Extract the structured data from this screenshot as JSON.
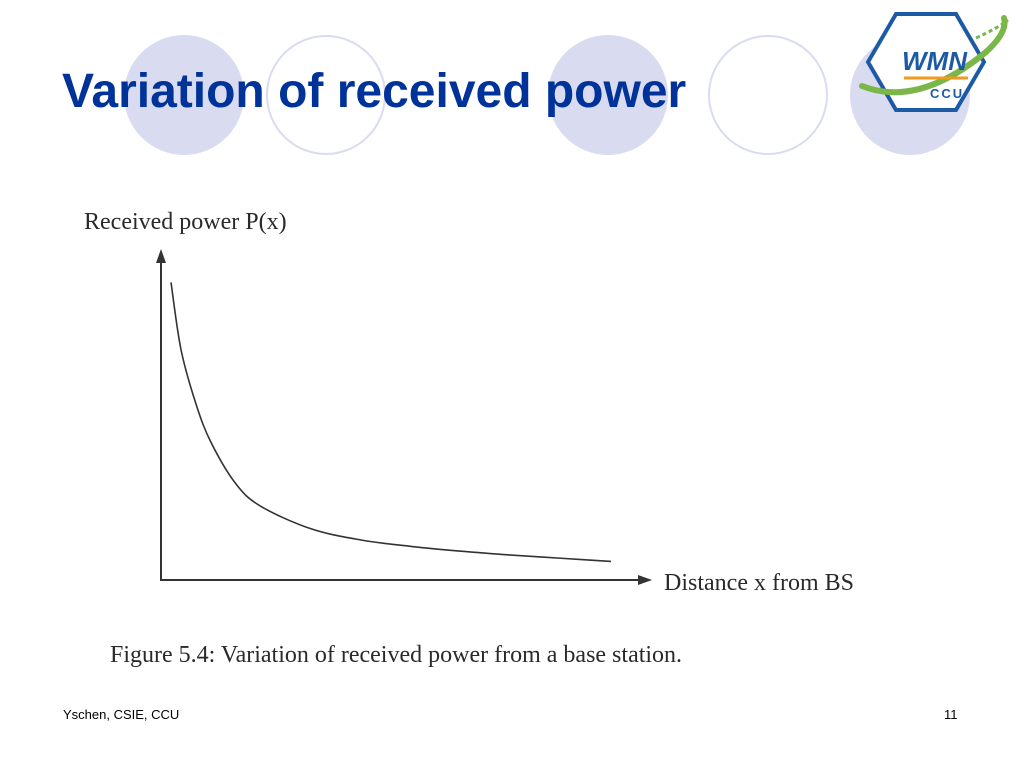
{
  "slide": {
    "title": "Variation of received power"
  },
  "logo": {
    "text_main": "WMN",
    "text_sub": "CCU"
  },
  "footer": {
    "left": "Yschen, CSIE, CCU",
    "page_number": "11"
  },
  "colors": {
    "title": "#003399",
    "circle_fill": "#d9dbf1",
    "logo_green": "#7ab648",
    "logo_blue": "#1d5aa6",
    "logo_orange": "#f39a1e"
  },
  "chart_data": {
    "type": "line",
    "title": "",
    "ylabel": "Received power P(x)",
    "xlabel": "Distance x from BS",
    "caption": "Figure 5.4:  Variation of received power from a base station.",
    "grid": false,
    "legend": "none",
    "xlim": [
      0,
      10
    ],
    "ylim": [
      0,
      10
    ],
    "series": [
      {
        "x": [
          0.2,
          0.4,
          0.7,
          1.0,
          1.5,
          2.0,
          3.0,
          4.0,
          5.0,
          6.0,
          7.0,
          8.0,
          9.0
        ],
        "values": [
          9.3,
          7.2,
          5.5,
          4.3,
          3.0,
          2.3,
          1.6,
          1.25,
          1.05,
          0.9,
          0.78,
          0.68,
          0.58
        ]
      }
    ]
  }
}
